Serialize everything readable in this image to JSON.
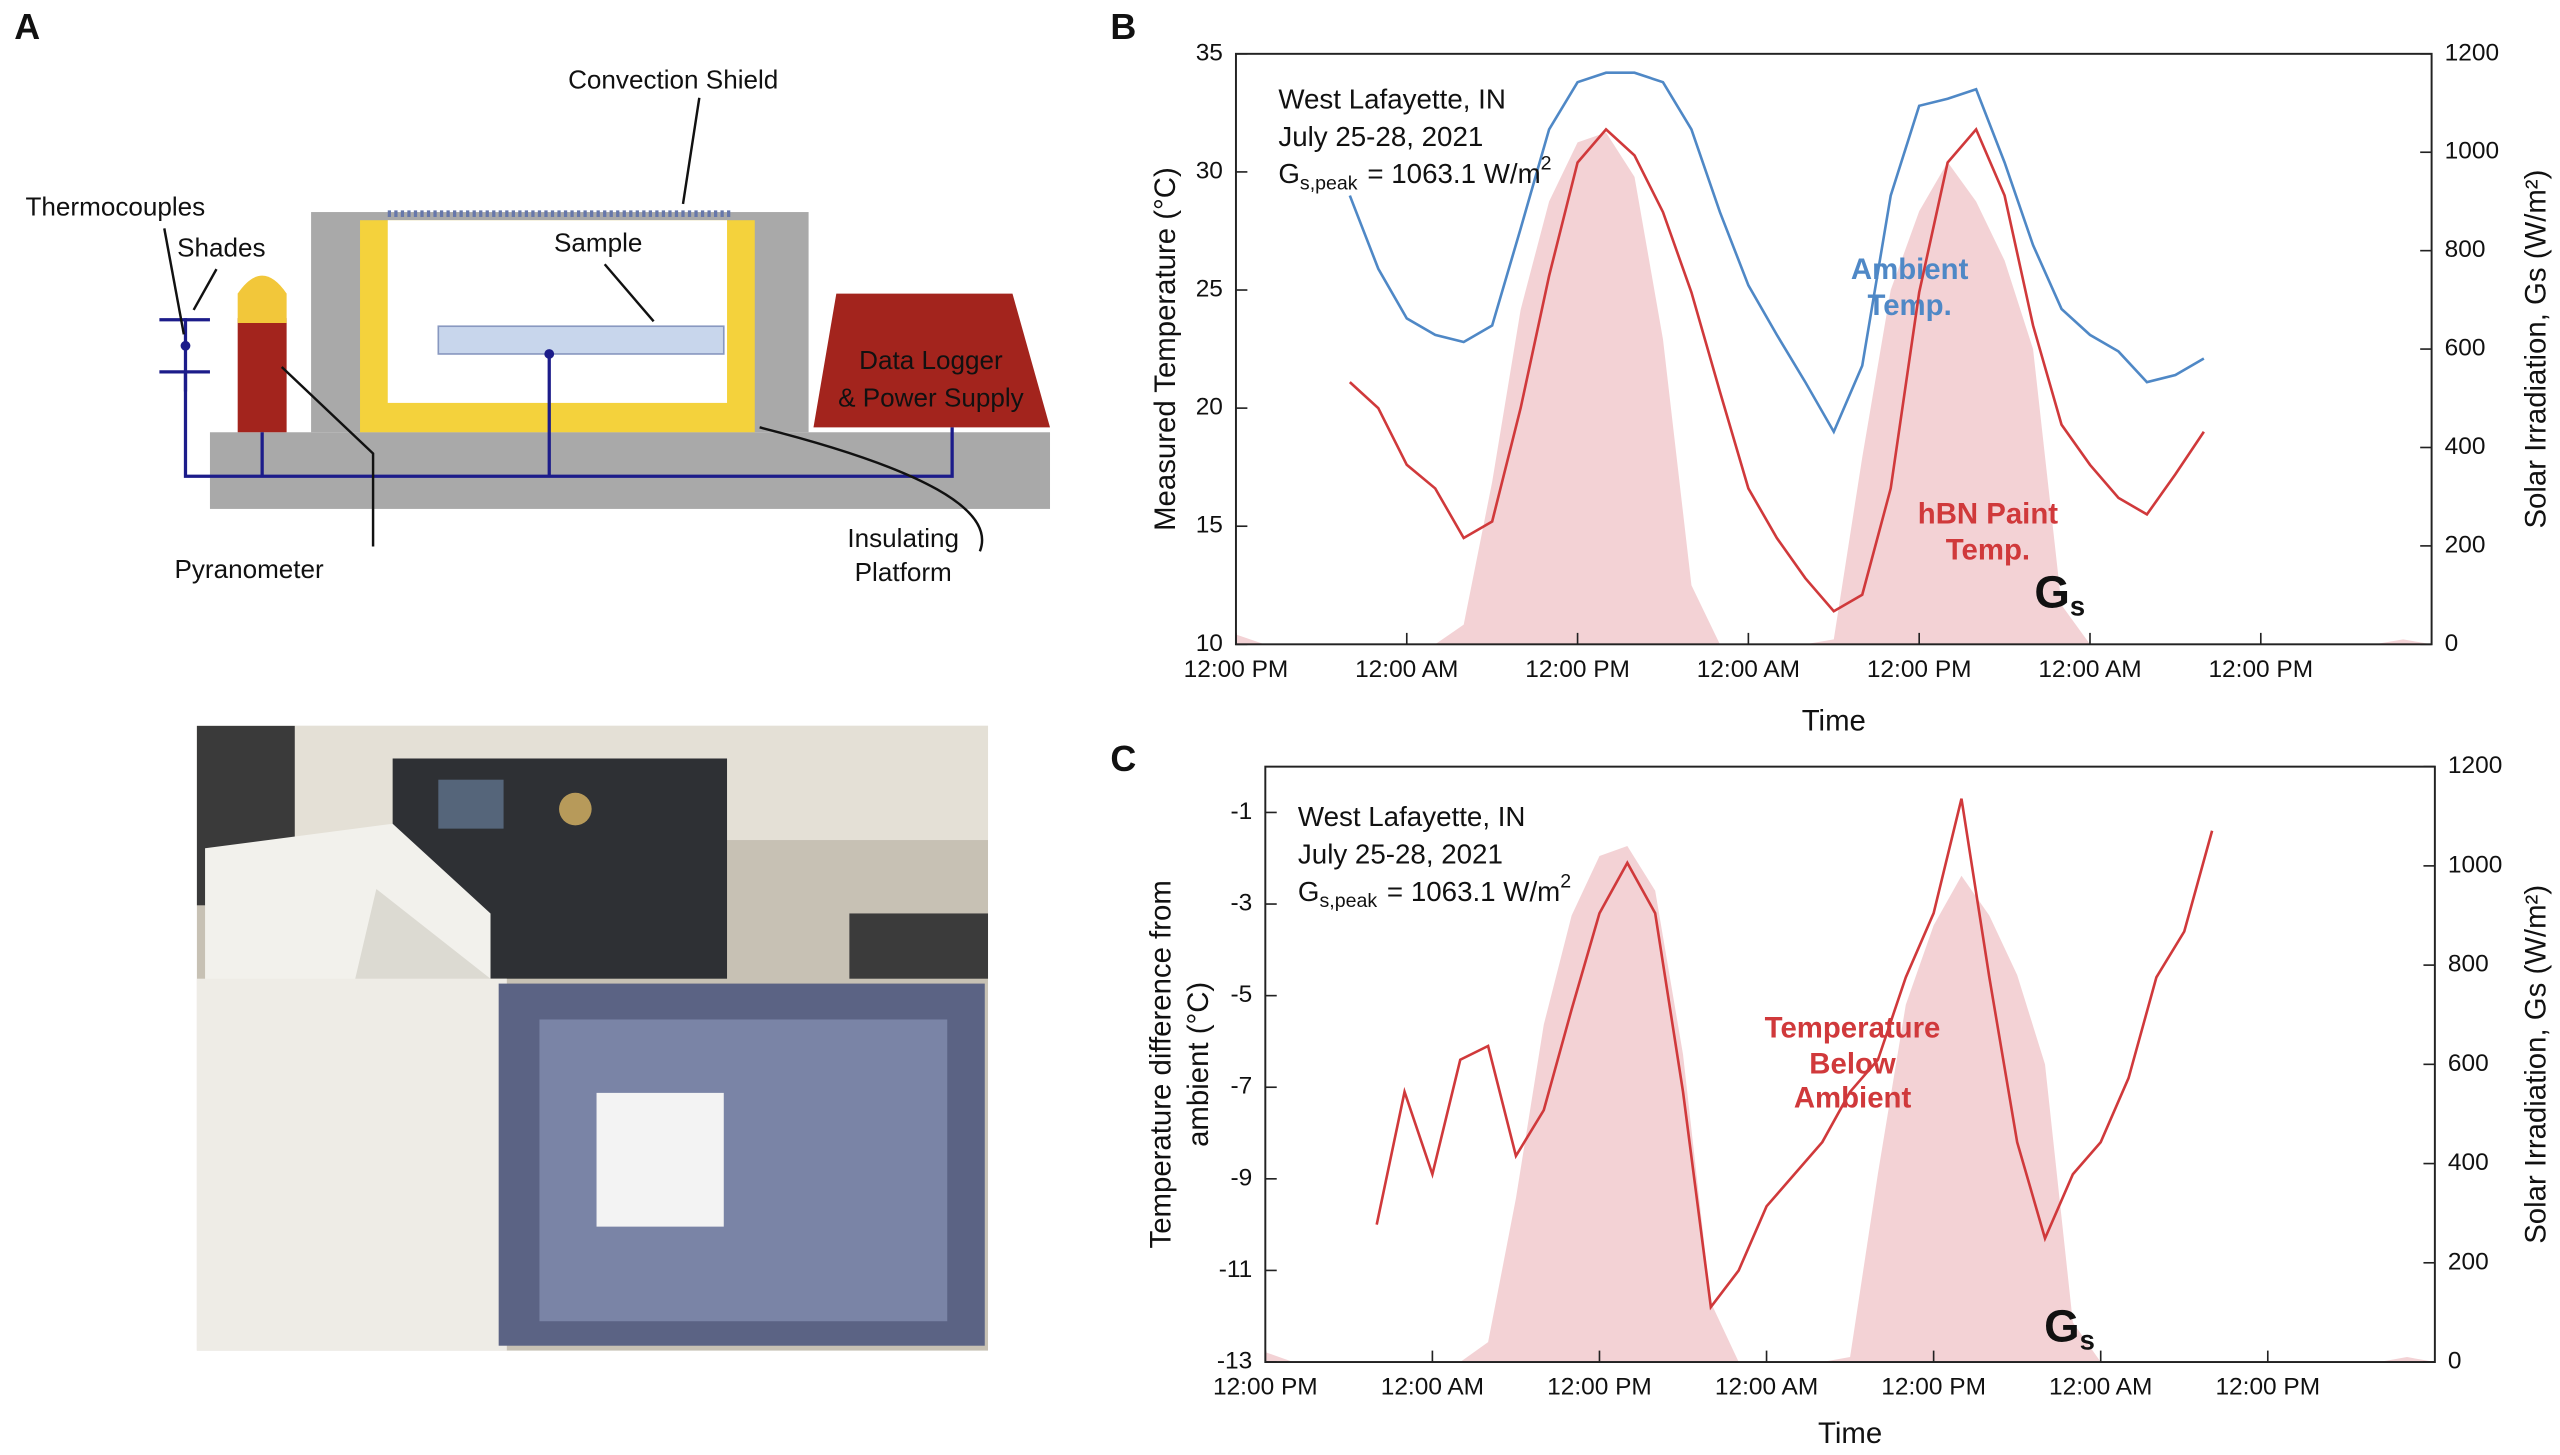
{
  "panel_labels": [
    "A",
    "B",
    "C"
  ],
  "diagram": {
    "convection_shield": "Convection Shield",
    "thermocouples": "Thermocouples",
    "shades": "Shades",
    "sample": "Sample",
    "data_logger": [
      "Data Logger",
      "& Power Supply"
    ],
    "pyranometer": "Pyranometer",
    "insulating_platform": [
      "Insulating",
      "Platform"
    ]
  },
  "chart_data": [
    {
      "type": "line",
      "annotation": {
        "lines": [
          "West Lafayette, IN",
          "July 25-28, 2021"
        ],
        "peak": {
          "symbol": "G",
          "subscript": "s,peak",
          "text": "= 1063.1 W/m",
          "superscript": "2"
        }
      },
      "xlabel": "Time",
      "ylabel": "Measured Temperature (°C)",
      "y2label": "Solar Irradiation, Gs (W/m²)",
      "xlim": [
        0,
        84
      ],
      "xticks": [
        {
          "value": 0,
          "label": "12:00 PM"
        },
        {
          "value": 12,
          "label": "12:00 AM"
        },
        {
          "value": 24,
          "label": "12:00 PM"
        },
        {
          "value": 36,
          "label": "12:00 AM"
        },
        {
          "value": 48,
          "label": "12:00 PM"
        },
        {
          "value": 60,
          "label": "12:00 AM"
        },
        {
          "value": 72,
          "label": "12:00 PM"
        }
      ],
      "ylim": [
        10,
        35
      ],
      "yticks": [
        10,
        15,
        20,
        25,
        30,
        35
      ],
      "y2lim": [
        0,
        1200
      ],
      "y2ticks": [
        0,
        200,
        400,
        600,
        800,
        1000,
        1200
      ],
      "series": [
        {
          "name": "Ambient Temp.",
          "color": "#4f88c6",
          "x": [
            8,
            10,
            12,
            14,
            16,
            18,
            20,
            22,
            24,
            26,
            28,
            30,
            32,
            34,
            36,
            38,
            40,
            42,
            44,
            46,
            48,
            50,
            52,
            54,
            56,
            58,
            60,
            62,
            64,
            66,
            68
          ],
          "values": [
            29,
            25.9,
            23.8,
            23.1,
            22.8,
            23.5,
            27.6,
            31.8,
            33.8,
            34.2,
            34.2,
            33.8,
            31.8,
            28.3,
            25.2,
            23.1,
            21.1,
            19,
            21.8,
            29,
            32.8,
            33.1,
            33.5,
            30.4,
            26.9,
            24.2,
            23.1,
            22.4,
            21.1,
            21.4,
            22.1
          ]
        },
        {
          "name": "hBN Paint Temp.",
          "color": "#d0393b",
          "x": [
            8,
            10,
            12,
            14,
            16,
            18,
            20,
            22,
            24,
            26,
            28,
            30,
            32,
            34,
            36,
            38,
            40,
            42,
            44,
            46,
            48,
            50,
            52,
            54,
            56,
            58,
            60,
            62,
            64,
            66,
            68
          ],
          "values": [
            21.1,
            20,
            17.6,
            16.6,
            14.5,
            15.2,
            20,
            25.6,
            30.4,
            31.8,
            30.7,
            28.3,
            24.9,
            20.7,
            16.6,
            14.5,
            12.8,
            11.4,
            12.1,
            16.6,
            24.9,
            30.4,
            31.8,
            29,
            23.5,
            19.3,
            17.6,
            16.2,
            15.5,
            17.2,
            19
          ]
        },
        {
          "name": "G",
          "subscript": "s",
          "color": "#f2cdd0",
          "fill": true,
          "axis": "y2",
          "x": [
            0,
            2,
            4,
            6,
            8,
            10,
            12,
            14,
            16,
            18,
            20,
            22,
            24,
            26,
            28,
            30,
            32,
            34,
            36,
            38,
            40,
            42,
            44,
            46,
            48,
            50,
            52,
            54,
            56,
            58,
            60,
            62,
            64,
            66,
            68,
            70,
            72,
            74,
            76,
            78,
            80,
            82,
            84
          ],
          "values": [
            20,
            0,
            0,
            0,
            0,
            0,
            0,
            0,
            40,
            330,
            680,
            900,
            1020,
            1040,
            950,
            620,
            120,
            0,
            0,
            0,
            0,
            10,
            380,
            720,
            880,
            980,
            900,
            780,
            600,
            80,
            0,
            0,
            0,
            0,
            0,
            0,
            0,
            0,
            0,
            0,
            0,
            10,
            0
          ]
        }
      ]
    },
    {
      "type": "line",
      "annotation": {
        "lines": [
          "West Lafayette, IN",
          "July 25-28, 2021"
        ],
        "peak": {
          "symbol": "G",
          "subscript": "s,peak",
          "text": "= 1063.1 W/m",
          "superscript": "2"
        }
      },
      "xlabel": "Time",
      "ylabel": [
        "Temperature difference from",
        "ambient (°C)"
      ],
      "y2label": "Solar Irradiation, Gs (W/m²)",
      "xlim": [
        0,
        84
      ],
      "xticks": [
        {
          "value": 0,
          "label": "12:00 PM"
        },
        {
          "value": 12,
          "label": "12:00 AM"
        },
        {
          "value": 24,
          "label": "12:00 PM"
        },
        {
          "value": 36,
          "label": "12:00 AM"
        },
        {
          "value": 48,
          "label": "12:00 PM"
        },
        {
          "value": 60,
          "label": "12:00 AM"
        },
        {
          "value": 72,
          "label": "12:00 PM"
        }
      ],
      "ylim": [
        -13,
        0
      ],
      "yticks": [
        -13,
        -11,
        -9,
        -7,
        -5,
        -3,
        -1
      ],
      "y2lim": [
        0,
        1200
      ],
      "y2ticks": [
        0,
        200,
        400,
        600,
        800,
        1000,
        1200
      ],
      "series": [
        {
          "name": "Temperature Below Ambient",
          "color": "#d0393b",
          "x": [
            8,
            10,
            12,
            14,
            16,
            18,
            20,
            22,
            24,
            26,
            28,
            30,
            32,
            34,
            36,
            38,
            40,
            42,
            44,
            46,
            48,
            50,
            52,
            54,
            56,
            58,
            60,
            62,
            64,
            66,
            68
          ],
          "values": [
            -10,
            -7.1,
            -8.9,
            -6.4,
            -6.1,
            -8.5,
            -7.5,
            -5.3,
            -3.2,
            -2.1,
            -3.2,
            -7.1,
            -11.8,
            -11,
            -9.6,
            -8.9,
            -8.2,
            -7.1,
            -6.4,
            -4.6,
            -3.2,
            -0.7,
            -4.6,
            -8.2,
            -10.3,
            -8.9,
            -8.2,
            -6.8,
            -4.6,
            -3.6,
            -1.4
          ]
        },
        {
          "name": "G",
          "subscript": "s",
          "color": "#f2cdd0",
          "fill": true,
          "axis": "y2",
          "x": [
            0,
            2,
            4,
            6,
            8,
            10,
            12,
            14,
            16,
            18,
            20,
            22,
            24,
            26,
            28,
            30,
            32,
            34,
            36,
            38,
            40,
            42,
            44,
            46,
            48,
            50,
            52,
            54,
            56,
            58,
            60,
            62,
            64,
            66,
            68,
            70,
            72,
            74,
            76,
            78,
            80,
            82,
            84
          ],
          "values": [
            20,
            0,
            0,
            0,
            0,
            0,
            0,
            0,
            40,
            330,
            680,
            900,
            1020,
            1040,
            950,
            620,
            120,
            0,
            0,
            0,
            0,
            10,
            380,
            720,
            880,
            980,
            900,
            780,
            600,
            80,
            0,
            0,
            0,
            0,
            0,
            0,
            0,
            0,
            0,
            0,
            0,
            10,
            0
          ]
        }
      ]
    }
  ]
}
